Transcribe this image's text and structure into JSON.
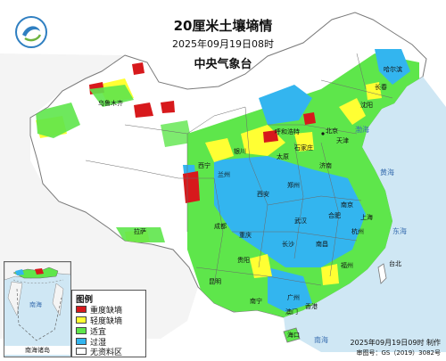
{
  "title": "20厘米土壤墒情",
  "datetime": "2025年09月19日08时",
  "issuer": "中央气象台",
  "colors": {
    "severe_drought": "#d7191c",
    "light_drought": "#ffff33",
    "suitable": "#5ee64b",
    "waterlogged": "#33b5ef",
    "no_data": "#ffffff",
    "sea": "#cfe7f4"
  },
  "legend": {
    "title": "图例",
    "items": [
      {
        "label": "重度缺墒",
        "color": "#d7191c"
      },
      {
        "label": "轻度缺墒",
        "color": "#ffff33"
      },
      {
        "label": "适宜",
        "color": "#5ee64b"
      },
      {
        "label": "过湿",
        "color": "#33b5ef"
      },
      {
        "label": "无资料区",
        "color": "#ffffff"
      }
    ]
  },
  "inset": {
    "label": "南海诸岛"
  },
  "credits": {
    "made": "2025年09月19日09时 制作",
    "approval": "审图号：GS（2019）3082号"
  },
  "places": {
    "beijing": "北京",
    "tianjin": "天津",
    "shijiazhuang": "石家庄",
    "taiyuan": "太原",
    "jinan": "济南",
    "zhengzhou": "郑州",
    "nanjing": "南京",
    "shanghai": "上海",
    "hangzhou": "杭州",
    "hefei": "合肥",
    "wuhan": "武汉",
    "changsha": "长沙",
    "nanchang": "南昌",
    "fuzhou": "福州",
    "guangzhou": "广州",
    "nanning": "南宁",
    "haikou": "海口",
    "kunming": "昆明",
    "guiyang": "贵阳",
    "chengdu": "成都",
    "chongqing": "重庆",
    "xian": "西安",
    "lanzhou": "兰州",
    "xining": "西宁",
    "yinchuan": "银川",
    "hohhot": "呼和浩特",
    "lhasa": "拉萨",
    "urumqi": "乌鲁木齐",
    "harbin": "哈尔滨",
    "changchun": "长春",
    "shenyang": "沈阳",
    "taibei": "台北",
    "hongkong": "香港",
    "macau": "澳门"
  },
  "seas": {
    "bohai": "渤海",
    "yellow_sea": "黄海",
    "east_sea": "东海",
    "south_sea": "南海",
    "inset_south_sea": "南海"
  }
}
